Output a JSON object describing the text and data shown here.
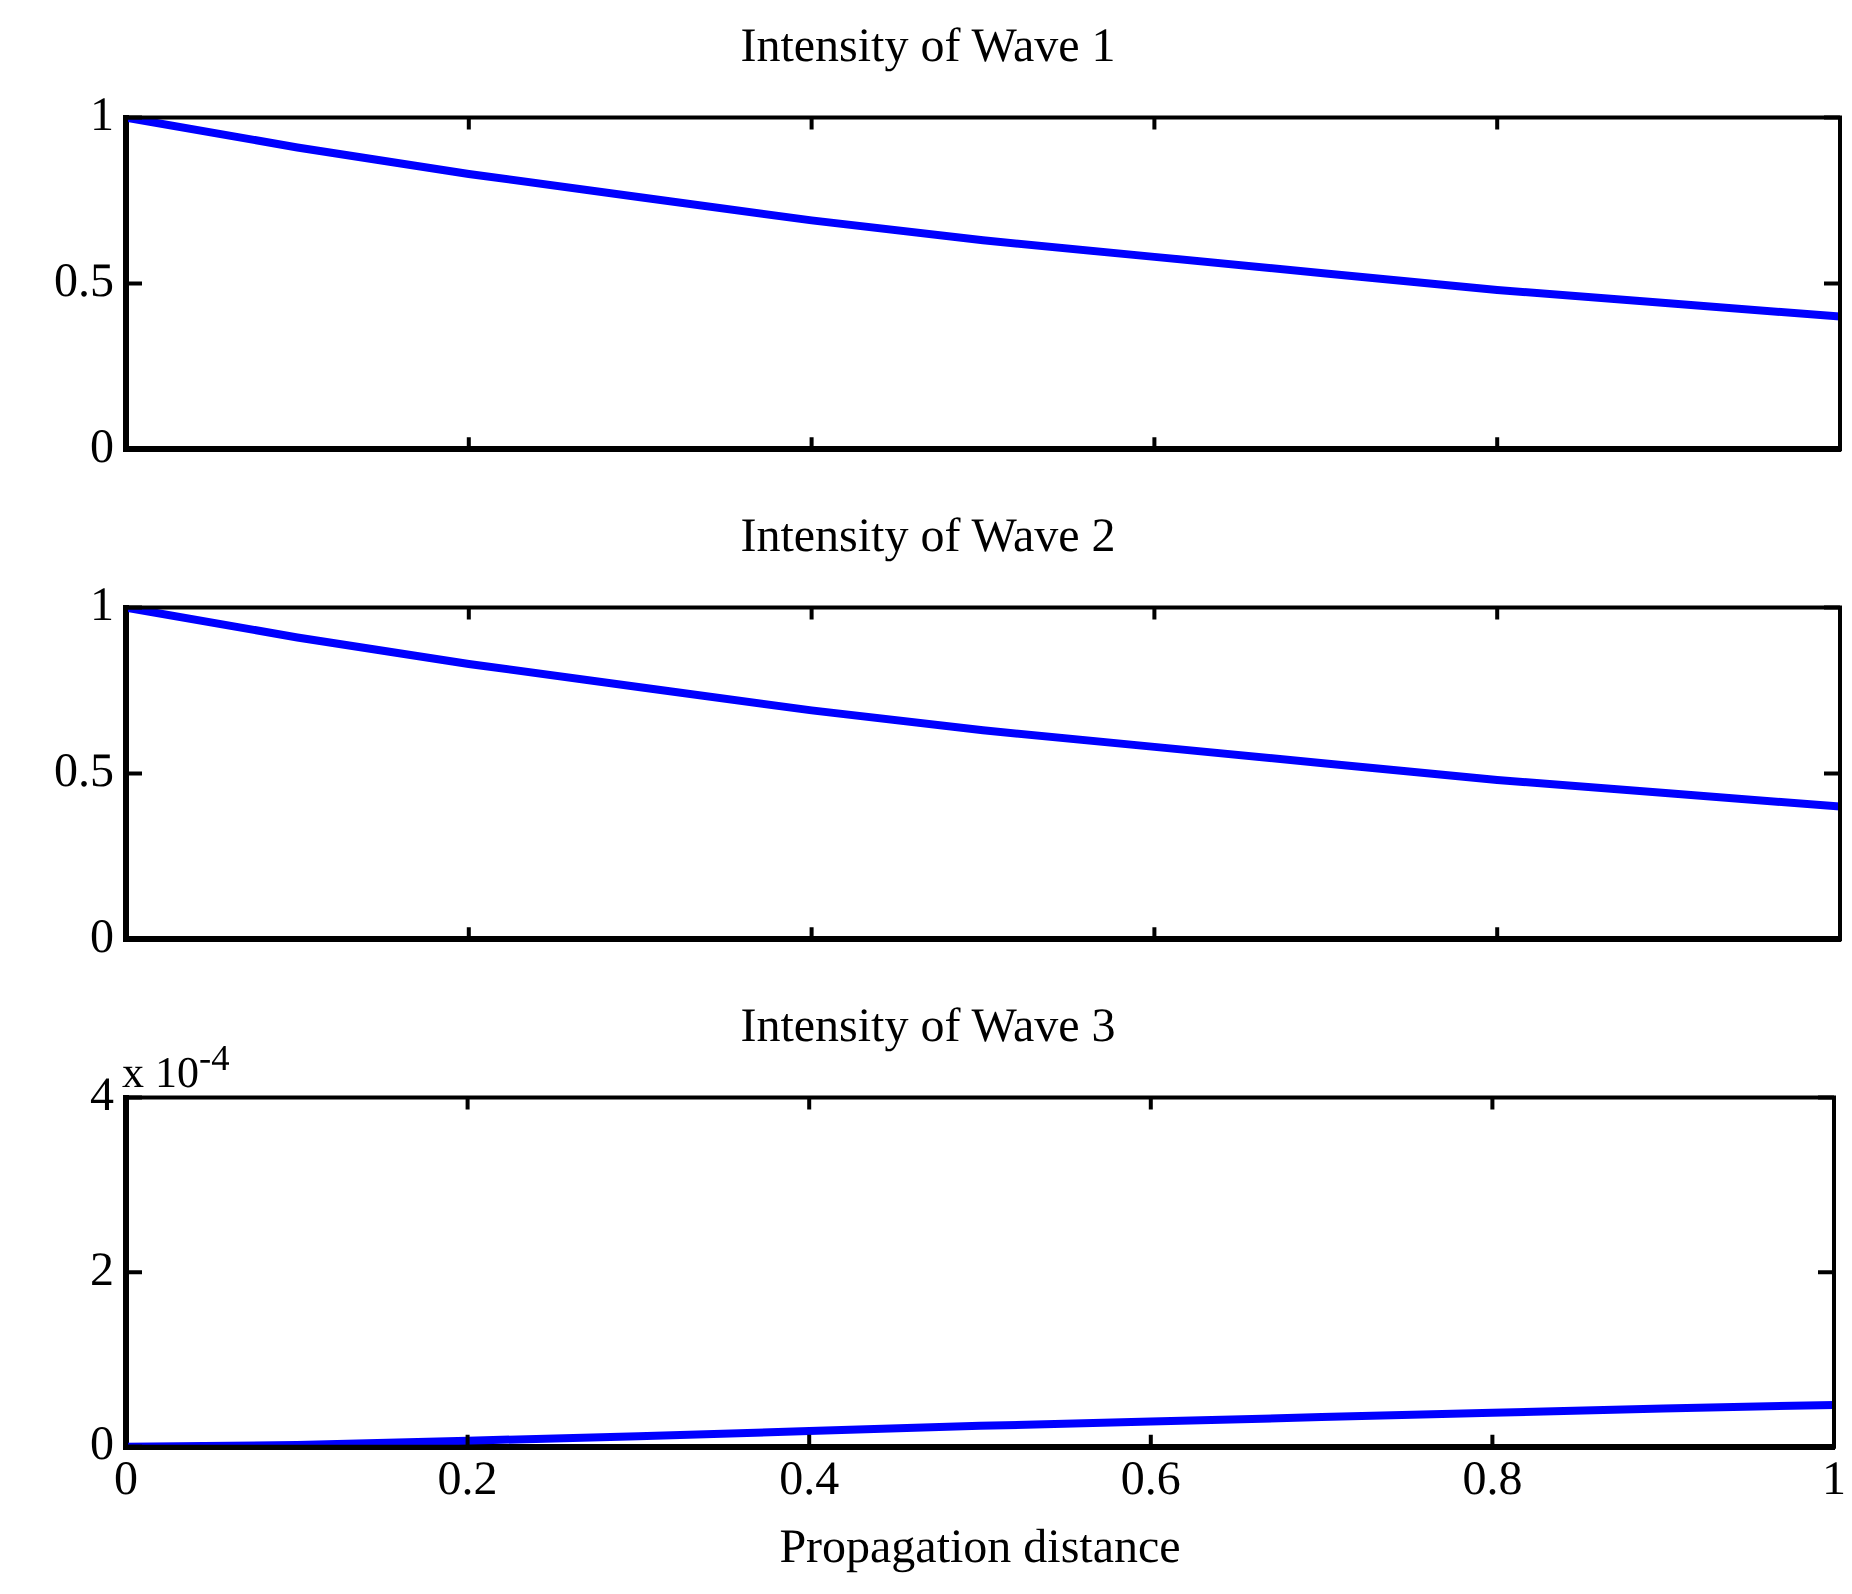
{
  "chart_data": [
    {
      "type": "line",
      "title": "Intensity of Wave 1",
      "x": [
        0,
        0.1,
        0.2,
        0.3,
        0.4,
        0.5,
        0.6,
        0.7,
        0.8,
        0.9,
        1
      ],
      "series": [
        {
          "color": "#0000ff",
          "values": [
            1,
            0.91,
            0.83,
            0.76,
            0.69,
            0.63,
            0.58,
            0.53,
            0.48,
            0.44,
            0.4
          ]
        }
      ],
      "xlim": [
        0,
        1
      ],
      "xticks": [
        0,
        0.2,
        0.4,
        0.6,
        0.8,
        1
      ],
      "ylim": [
        0,
        1
      ],
      "yticks": [
        0,
        0.5,
        1
      ],
      "tick_labels": "y",
      "grid": false,
      "legend": false,
      "marker": "none",
      "line_style": "solid"
    },
    {
      "type": "line",
      "title": "Intensity of Wave 2",
      "x": [
        0,
        0.1,
        0.2,
        0.3,
        0.4,
        0.5,
        0.6,
        0.7,
        0.8,
        0.9,
        1
      ],
      "series": [
        {
          "color": "#0000ff",
          "values": [
            1,
            0.91,
            0.83,
            0.76,
            0.69,
            0.63,
            0.58,
            0.53,
            0.48,
            0.44,
            0.4
          ]
        }
      ],
      "xlim": [
        0,
        1
      ],
      "xticks": [
        0,
        0.2,
        0.4,
        0.6,
        0.8,
        1
      ],
      "ylim": [
        0,
        1
      ],
      "yticks": [
        0,
        0.5,
        1
      ],
      "tick_labels": "y",
      "grid": false,
      "legend": false,
      "marker": "none",
      "line_style": "solid"
    },
    {
      "type": "line",
      "title": "Intensity of Wave 3",
      "xlabel": "Propagation distance",
      "annotations": [
        "x 10$^{-4}$"
      ],
      "x": [
        0,
        0.1,
        0.2,
        0.3,
        0.4,
        0.5,
        0.6,
        0.7,
        0.8,
        0.9,
        1
      ],
      "series": [
        {
          "color": "#0000ff",
          "values": [
            0,
            0.02,
            0.07,
            0.12,
            0.18,
            0.24,
            0.29,
            0.34,
            0.39,
            0.44,
            0.48
          ]
        }
      ],
      "xlim": [
        0,
        1
      ],
      "xticks": [
        0,
        0.2,
        0.4,
        0.6,
        0.8,
        1
      ],
      "ylim": [
        0,
        4
      ],
      "yticks": [
        0,
        2,
        4
      ],
      "grid": false,
      "legend": false,
      "marker": "none",
      "line_style": "solid"
    }
  ]
}
